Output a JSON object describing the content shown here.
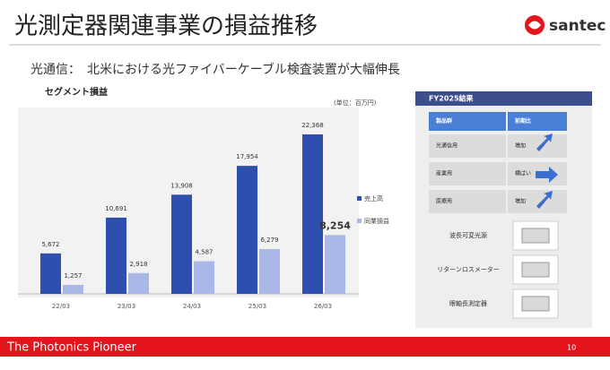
{
  "header": {
    "title": "光測定器関連事業の損益推移",
    "logo": "santec"
  },
  "subtitle": "光通信：　北米における光ファイバーケーブル検査装置が大幅伸長",
  "chart_data": {
    "type": "bar",
    "title": "セグメント損益",
    "note": "(単位：百万円)",
    "categories": [
      "22/03",
      "23/03",
      "24/03",
      "25/03",
      "26/03"
    ],
    "series": [
      {
        "name": "売上高",
        "color": "#2f4fae",
        "values": [
          5672,
          10691,
          13908,
          17954,
          22368
        ],
        "value_labels": [
          "5,672",
          "10,691",
          "13,908",
          "17,954",
          "22,368"
        ]
      },
      {
        "name": "同業損益",
        "color": "#a9b8e6",
        "values": [
          1257,
          2918,
          4587,
          6279,
          8254
        ],
        "value_labels": [
          "1,257",
          "2,918",
          "4,587",
          "6,279",
          "8,254"
        ]
      }
    ]
  },
  "panel": {
    "title": "FY2025結果",
    "table": {
      "header": [
        "製品群",
        "前期比"
      ],
      "rows": [
        [
          "光通信用",
          "増加"
        ],
        [
          "産業用",
          "横ばい"
        ],
        [
          "医療用",
          "増加"
        ]
      ]
    },
    "products": [
      "波長可変光源",
      "リターンロスメーター",
      "眼軸長測定器"
    ]
  },
  "footer": {
    "tagline": "The Photonics Pioneer",
    "page": 10
  }
}
